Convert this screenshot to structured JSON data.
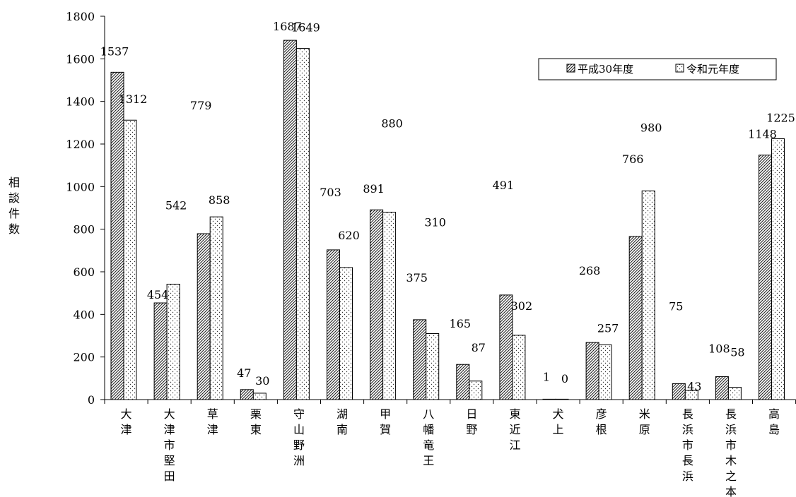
{
  "chart_data": {
    "type": "bar",
    "ylabel": "相談件数",
    "ylim": [
      0,
      1800
    ],
    "yticks": [
      0,
      200,
      400,
      600,
      800,
      1000,
      1200,
      1400,
      1600,
      1800
    ],
    "grid": false,
    "legend_position": "top-right",
    "categories": [
      "大津",
      "大津市堅田",
      "草津",
      "栗東",
      "守山野洲",
      "湖南",
      "甲賀",
      "八幡竜王",
      "日野",
      "東近江",
      "犬上",
      "彦根",
      "米原",
      "長浜市長浜",
      "長浜市木之本",
      "高島"
    ],
    "series": [
      {
        "name": "平成30年度",
        "pattern": "hatch",
        "values": [
          1537,
          454,
          779,
          47,
          1687,
          703,
          891,
          375,
          165,
          491,
          1,
          268,
          766,
          75,
          108,
          1148
        ]
      },
      {
        "name": "令和元年度",
        "pattern": "dots",
        "values": [
          1312,
          542,
          858,
          30,
          1649,
          620,
          880,
          310,
          87,
          302,
          0,
          257,
          980,
          43,
          58,
          1225
        ]
      }
    ]
  }
}
